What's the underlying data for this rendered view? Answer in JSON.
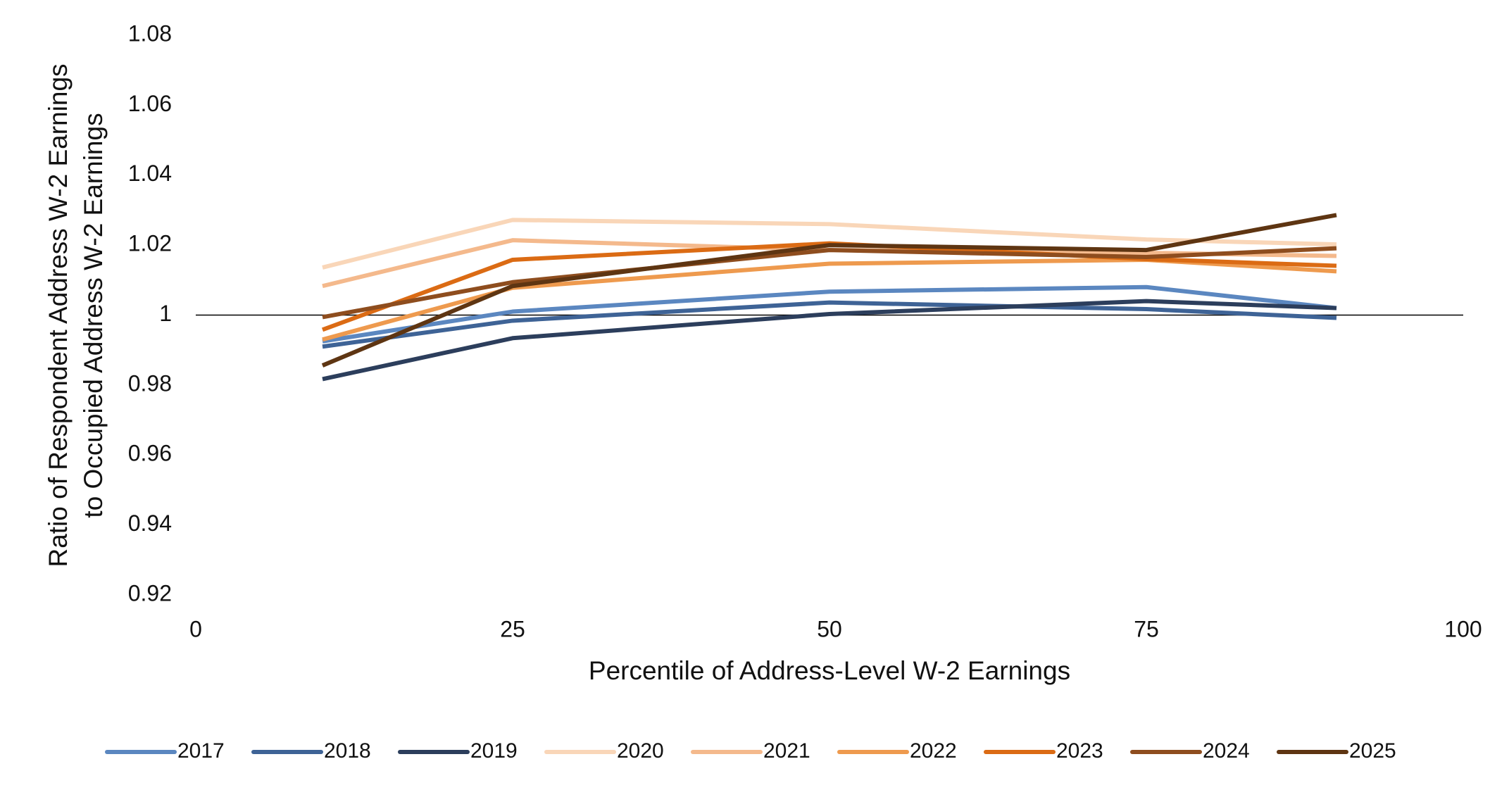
{
  "chart_data": {
    "type": "line",
    "xlabel": "Percentile of Address-Level W-2 Earnings",
    "ylabel": [
      "Ratio of Respondent Address W-2 Earnings",
      "to Occupied Address W-2 Earnings"
    ],
    "x": [
      10,
      25,
      50,
      75,
      90
    ],
    "xlim": [
      0,
      100
    ],
    "xticks": [
      0,
      25,
      50,
      75,
      100
    ],
    "ylim": [
      0.92,
      1.08
    ],
    "yticks": [
      0.92,
      0.94,
      0.96,
      0.98,
      1,
      1.02,
      1.04,
      1.06,
      1.08
    ],
    "x_axis_crosses": 1,
    "legend": "bottom",
    "series": [
      {
        "name": "2017",
        "color": "#5b87c0",
        "values": [
          0.9925,
          1.001,
          1.0067,
          1.008,
          1.002
        ]
      },
      {
        "name": "2018",
        "color": "#3e6396",
        "values": [
          0.991,
          0.9984,
          1.0036,
          1.0017,
          0.9992
        ]
      },
      {
        "name": "2019",
        "color": "#2c3e5c",
        "values": [
          0.9817,
          0.9934,
          1.0003,
          1.004,
          1.002
        ]
      },
      {
        "name": "2020",
        "color": "#f9d6b8",
        "values": [
          1.0136,
          1.0272,
          1.026,
          1.0216,
          1.0202
        ]
      },
      {
        "name": "2021",
        "color": "#f4b98c",
        "values": [
          1.0083,
          1.0214,
          1.0186,
          1.0178,
          1.0169
        ]
      },
      {
        "name": "2022",
        "color": "#ee9a4e",
        "values": [
          0.993,
          1.0078,
          1.0147,
          1.0158,
          1.0125
        ]
      },
      {
        "name": "2023",
        "color": "#db6b14",
        "values": [
          0.9958,
          1.0158,
          1.0205,
          1.016,
          1.0141
        ]
      },
      {
        "name": "2024",
        "color": "#8e4d1e",
        "values": [
          0.9994,
          1.0094,
          1.0186,
          1.0166,
          1.0191
        ]
      },
      {
        "name": "2025",
        "color": "#5e3512",
        "values": [
          0.9856,
          1.0083,
          1.02,
          1.0186,
          1.0286
        ]
      }
    ]
  }
}
